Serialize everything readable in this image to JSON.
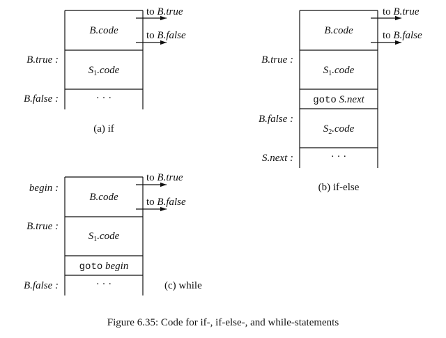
{
  "diagrams": {
    "if": {
      "caption": "(a) if",
      "entry_label": "",
      "arrows": [
        {
          "prefix": "to",
          "target": "B.true"
        },
        {
          "prefix": "to",
          "target": "B.false"
        }
      ],
      "cells": [
        {
          "label": "",
          "text": "B.code",
          "style": "italic"
        },
        {
          "label": "B.true :",
          "text": "S1.code",
          "style": "italic"
        },
        {
          "label": "B.false :",
          "text": "· · ·",
          "style": "plain"
        }
      ]
    },
    "if_else": {
      "caption": "(b) if-else",
      "entry_label": "",
      "arrows": [
        {
          "prefix": "to",
          "target": "B.true"
        },
        {
          "prefix": "to",
          "target": "B.false"
        }
      ],
      "cells": [
        {
          "label": "",
          "text": "B.code",
          "style": "italic"
        },
        {
          "label": "B.true :",
          "text": "S1.code",
          "style": "italic"
        },
        {
          "label": "",
          "text_prefix": "goto",
          "text": "S.next",
          "style": "goto"
        },
        {
          "label": "B.false :",
          "text": "S2.code",
          "style": "italic"
        },
        {
          "label": "S.next :",
          "text": "· · ·",
          "style": "plain"
        }
      ]
    },
    "while": {
      "caption": "(c) while",
      "entry_label": "begin :",
      "arrows": [
        {
          "prefix": "to",
          "target": "B.true"
        },
        {
          "prefix": "to",
          "target": "B.false"
        }
      ],
      "cells": [
        {
          "label": "begin :",
          "text": "B.code",
          "style": "italic"
        },
        {
          "label": "B.true :",
          "text": "S1.code",
          "style": "italic"
        },
        {
          "label": "",
          "text_prefix": "goto",
          "text": "begin",
          "style": "goto"
        },
        {
          "label": "B.false :",
          "text": "· · ·",
          "style": "plain"
        }
      ]
    }
  },
  "figure_caption": "Figure 6.35: Code for if-, if-else-, and while-statements"
}
